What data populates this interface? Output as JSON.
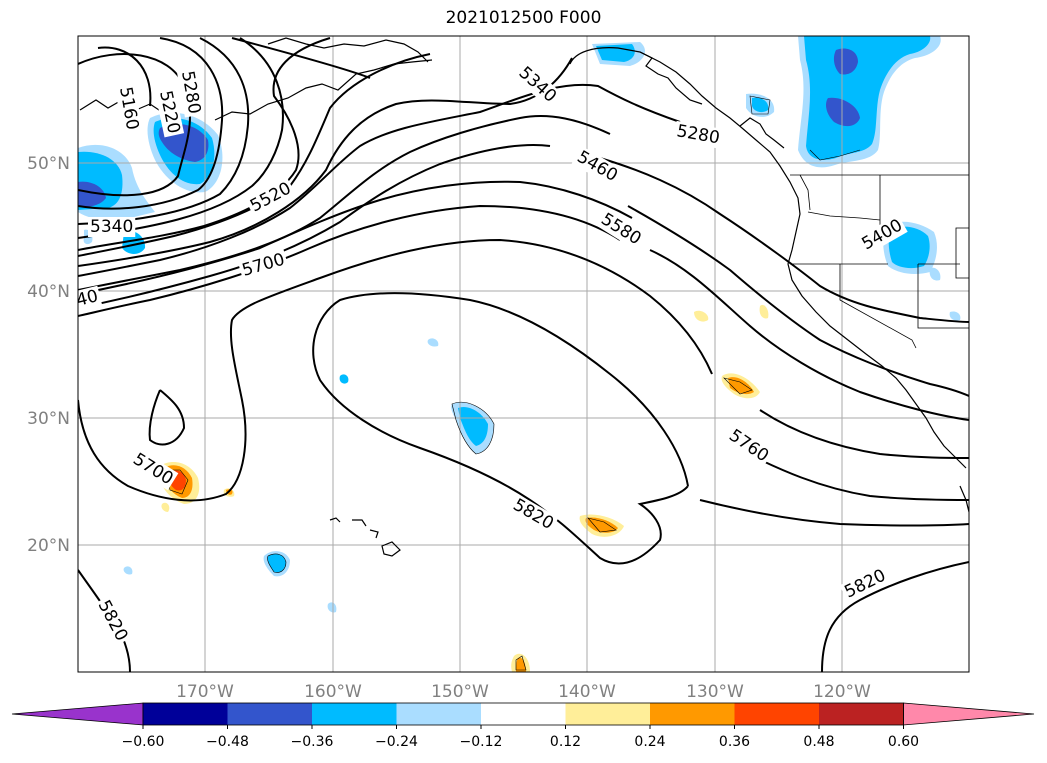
{
  "title": "2021012500 F000",
  "lat_labels": [
    "50°N",
    "40°N",
    "30°N",
    "20°N"
  ],
  "lon_labels": [
    "170°W",
    "160°W",
    "150°W",
    "140°W",
    "130°W",
    "120°W"
  ],
  "contour_labels": [
    "5160",
    "5220",
    "5280",
    "5340",
    "5520",
    "5700",
    "40",
    "5700",
    "5340",
    "5280",
    "5460",
    "5580",
    "5400",
    "5760",
    "5820",
    "5820",
    "5820"
  ],
  "colorbar": {
    "ticks": [
      "−0.60",
      "−0.48",
      "−0.36",
      "−0.24",
      "−0.12",
      "0.12",
      "0.24",
      "0.36",
      "0.48",
      "0.60"
    ],
    "colors": {
      "under": "#9933cc",
      "bins": [
        "#000099",
        "#3355cc",
        "#00bbff",
        "#aaddff",
        "#ffffff",
        "#ffee99",
        "#ff9900",
        "#ff4400",
        "#bb2222"
      ],
      "over": "#ff88aa"
    }
  }
}
